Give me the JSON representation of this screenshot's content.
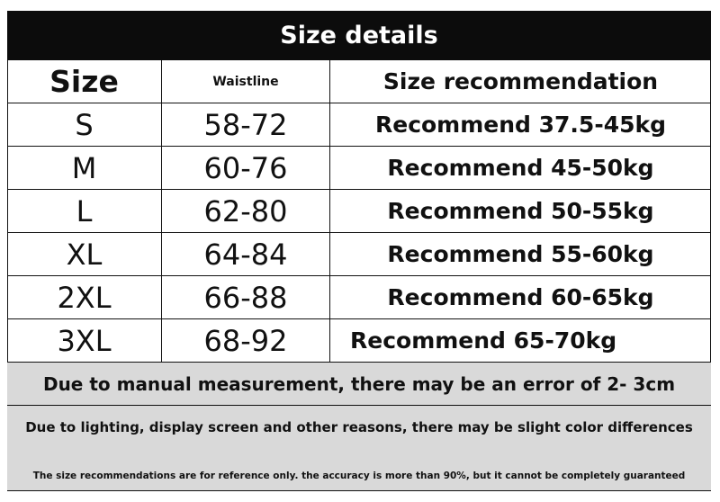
{
  "title": "Size details",
  "columns": [
    "Size",
    "Waistline",
    "Size recommendation"
  ],
  "rows": [
    {
      "size": "S",
      "waistline": "58-72",
      "recommendation": "Recommend 37.5-45kg"
    },
    {
      "size": "M",
      "waistline": "60-76",
      "recommendation": "Recommend 45-50kg"
    },
    {
      "size": "L",
      "waistline": "62-80",
      "recommendation": "Recommend 50-55kg"
    },
    {
      "size": "XL",
      "waistline": "64-84",
      "recommendation": "Recommend 55-60kg"
    },
    {
      "size": "2XL",
      "waistline": "66-88",
      "recommendation": "Recommend 60-65kg"
    },
    {
      "size": "3XL",
      "waistline": "68-92",
      "recommendation": "Recommend 65-70kg"
    }
  ],
  "notes": [
    "Due to manual measurement, there may be an error of 2- 3cm",
    "Due to lighting, display screen and other reasons, there may be slight color differences",
    "The size recommendations are for reference only. the accuracy is more than 90%, but it cannot be completely guaranteed"
  ],
  "colors": {
    "header_bg": "#0c0c0c",
    "notes_bg": "#d9d9d9"
  }
}
